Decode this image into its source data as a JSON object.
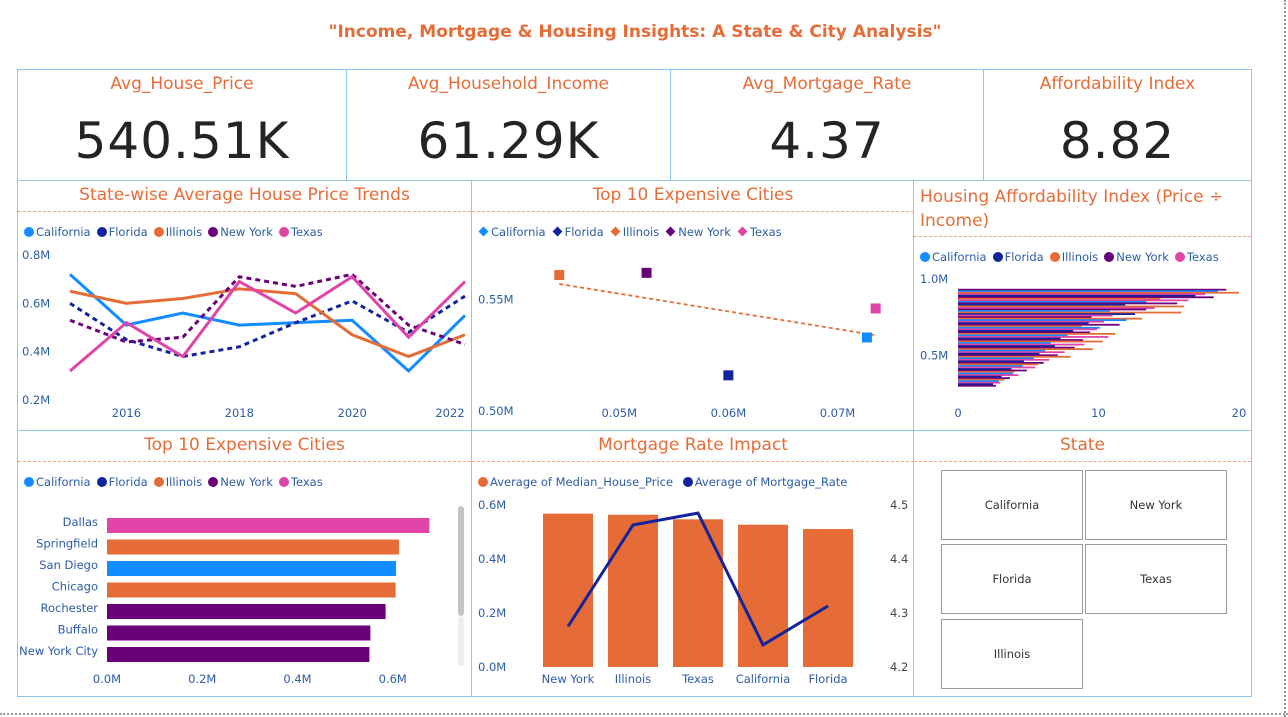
{
  "title": "\"Income, Mortgage & Housing Insights: A State & City Analysis\"",
  "kpis": [
    {
      "label": "Avg_House_Price",
      "value": "540.51K"
    },
    {
      "label": "Avg_Household_Income",
      "value": "61.29K"
    },
    {
      "label": "Avg_Mortgage_Rate",
      "value": "4.37"
    },
    {
      "label": "Affordability Index",
      "value": "8.82"
    }
  ],
  "colors": {
    "California": "#118DFF",
    "Florida": "#12239E",
    "Illinois": "#E66C37",
    "New York": "#6B007B",
    "Texas": "#E044A7",
    "accent": "#E66C37",
    "border": "#8DC7F0"
  },
  "legend_states": [
    "California",
    "Florida",
    "Illinois",
    "New York",
    "Texas"
  ],
  "trend_chart": {
    "title": "State-wise Average House Price Trends",
    "y_ticks": [
      "0.8M",
      "0.6M",
      "0.4M",
      "0.2M"
    ],
    "x_ticks": [
      "2016",
      "2018",
      "2020",
      "2022"
    ]
  },
  "scatter_chart": {
    "title": "Top 10 Expensive Cities",
    "y_ticks": [
      "0.55M",
      "0.50M"
    ],
    "x_ticks": [
      "0.05M",
      "0.06M",
      "0.07M"
    ]
  },
  "afford_chart": {
    "title": "Housing Affordability Index (Price ÷ Income)",
    "y_ticks": [
      "1.0M",
      "0.5M"
    ],
    "x_ticks": [
      "0",
      "10",
      "20"
    ]
  },
  "cities_chart": {
    "title": "Top 10 Expensive Cities",
    "x_ticks": [
      "0.0M",
      "0.2M",
      "0.4M",
      "0.6M"
    ]
  },
  "mortgage_chart": {
    "title": "Mortgage Rate Impact",
    "legend": [
      "Average of Median_House_Price",
      "Average of Mortgage_Rate"
    ],
    "y_ticks_left": [
      "0.6M",
      "0.4M",
      "0.2M",
      "0.0M"
    ],
    "y_ticks_right": [
      "4.5",
      "4.4",
      "4.3",
      "4.2"
    ]
  },
  "state_slicer": {
    "title": "State",
    "items": [
      "California",
      "New York",
      "Florida",
      "Texas",
      "Illinois"
    ]
  },
  "chart_data": [
    {
      "type": "line",
      "title": "State-wise Average House Price Trends",
      "x": [
        2015,
        2016,
        2017,
        2018,
        2019,
        2020,
        2021,
        2022
      ],
      "ylim": [
        0.2,
        0.8
      ],
      "series": [
        {
          "name": "California",
          "values": [
            0.72,
            0.51,
            0.56,
            0.51,
            0.52,
            0.53,
            0.32,
            0.55
          ]
        },
        {
          "name": "Florida",
          "values": [
            0.6,
            0.45,
            0.38,
            0.42,
            0.52,
            0.61,
            0.48,
            0.63
          ]
        },
        {
          "name": "Illinois",
          "values": [
            0.65,
            0.6,
            0.62,
            0.66,
            0.64,
            0.47,
            0.38,
            0.47
          ]
        },
        {
          "name": "New York",
          "values": [
            0.53,
            0.44,
            0.46,
            0.71,
            0.67,
            0.72,
            0.51,
            0.43
          ]
        },
        {
          "name": "Texas",
          "values": [
            0.32,
            0.52,
            0.38,
            0.69,
            0.56,
            0.71,
            0.46,
            0.69
          ]
        }
      ]
    },
    {
      "type": "scatter",
      "title": "Top 10 Expensive Cities",
      "xlim": [
        0.042,
        0.075
      ],
      "ylim": [
        0.5,
        0.57
      ],
      "points": [
        {
          "series": "Illinois",
          "x": 0.0445,
          "y": 0.561
        },
        {
          "series": "New York",
          "x": 0.0525,
          "y": 0.562
        },
        {
          "series": "Florida",
          "x": 0.06,
          "y": 0.516
        },
        {
          "series": "California",
          "x": 0.0727,
          "y": 0.533
        },
        {
          "series": "Texas",
          "x": 0.0735,
          "y": 0.546
        }
      ],
      "trendline": [
        [
          0.0445,
          0.557
        ],
        [
          0.0735,
          0.534
        ]
      ]
    },
    {
      "type": "bar",
      "title": "Housing Affordability Index (Price ÷ Income)",
      "orientation": "horizontal",
      "xlim": [
        0,
        20
      ],
      "ylim": [
        0.2,
        1.0
      ],
      "bars": [
        {
          "series": "New York",
          "y": 0.93,
          "value": 19.1
        },
        {
          "series": "California",
          "y": 0.92,
          "value": 18.5
        },
        {
          "series": "Illinois",
          "y": 0.91,
          "value": 20.0
        },
        {
          "series": "Texas",
          "y": 0.9,
          "value": 17.6
        },
        {
          "series": "Florida",
          "y": 0.89,
          "value": 16.9
        },
        {
          "series": "New York",
          "y": 0.88,
          "value": 18.2
        },
        {
          "series": "Illinois",
          "y": 0.87,
          "value": 14.4
        },
        {
          "series": "Texas",
          "y": 0.86,
          "value": 16.4
        },
        {
          "series": "California",
          "y": 0.85,
          "value": 13.4
        },
        {
          "series": "New York",
          "y": 0.84,
          "value": 15.6
        },
        {
          "series": "Florida",
          "y": 0.83,
          "value": 11.9
        },
        {
          "series": "Illinois",
          "y": 0.82,
          "value": 16.1
        },
        {
          "series": "Texas",
          "y": 0.81,
          "value": 14.0
        },
        {
          "series": "New York",
          "y": 0.8,
          "value": 13.4
        },
        {
          "series": "California",
          "y": 0.79,
          "value": 10.8
        },
        {
          "series": "Illinois",
          "y": 0.78,
          "value": 15.9
        },
        {
          "series": "Florida",
          "y": 0.77,
          "value": 12.6
        },
        {
          "series": "Texas",
          "y": 0.76,
          "value": 11.0
        },
        {
          "series": "New York",
          "y": 0.75,
          "value": 9.5
        },
        {
          "series": "Illinois",
          "y": 0.74,
          "value": 13.1
        },
        {
          "series": "California",
          "y": 0.73,
          "value": 12.0
        },
        {
          "series": "Texas",
          "y": 0.72,
          "value": 10.4
        },
        {
          "series": "Florida",
          "y": 0.71,
          "value": 9.3
        },
        {
          "series": "New York",
          "y": 0.7,
          "value": 11.5
        },
        {
          "series": "Illinois",
          "y": 0.69,
          "value": 8.8
        },
        {
          "series": "California",
          "y": 0.68,
          "value": 10.1
        },
        {
          "series": "Texas",
          "y": 0.67,
          "value": 9.9
        },
        {
          "series": "Florida",
          "y": 0.66,
          "value": 8.2
        },
        {
          "series": "New York",
          "y": 0.65,
          "value": 9.4
        },
        {
          "series": "Illinois",
          "y": 0.64,
          "value": 11.2
        },
        {
          "series": "California",
          "y": 0.63,
          "value": 7.8
        },
        {
          "series": "Texas",
          "y": 0.62,
          "value": 10.7
        },
        {
          "series": "Florida",
          "y": 0.61,
          "value": 7.3
        },
        {
          "series": "New York",
          "y": 0.6,
          "value": 8.9
        },
        {
          "series": "Illinois",
          "y": 0.59,
          "value": 10.3
        },
        {
          "series": "California",
          "y": 0.58,
          "value": 6.6
        },
        {
          "series": "Texas",
          "y": 0.57,
          "value": 9.0
        },
        {
          "series": "Florida",
          "y": 0.56,
          "value": 6.9
        },
        {
          "series": "New York",
          "y": 0.55,
          "value": 8.3
        },
        {
          "series": "Illinois",
          "y": 0.54,
          "value": 9.6
        },
        {
          "series": "California",
          "y": 0.53,
          "value": 6.2
        },
        {
          "series": "Texas",
          "y": 0.52,
          "value": 7.6
        },
        {
          "series": "Florida",
          "y": 0.51,
          "value": 5.8
        },
        {
          "series": "New York",
          "y": 0.5,
          "value": 7.1
        },
        {
          "series": "Illinois",
          "y": 0.49,
          "value": 8.0
        },
        {
          "series": "California",
          "y": 0.48,
          "value": 5.4
        },
        {
          "series": "Texas",
          "y": 0.47,
          "value": 6.5
        },
        {
          "series": "Florida",
          "y": 0.46,
          "value": 4.7
        },
        {
          "series": "New York",
          "y": 0.45,
          "value": 6.1
        },
        {
          "series": "Illinois",
          "y": 0.44,
          "value": 5.7
        },
        {
          "series": "California",
          "y": 0.43,
          "value": 4.6
        },
        {
          "series": "Texas",
          "y": 0.42,
          "value": 5.5
        },
        {
          "series": "Florida",
          "y": 0.41,
          "value": 3.8
        },
        {
          "series": "New York",
          "y": 0.4,
          "value": 4.9
        },
        {
          "series": "Illinois",
          "y": 0.39,
          "value": 4.0
        },
        {
          "series": "California",
          "y": 0.38,
          "value": 3.9
        },
        {
          "series": "Texas",
          "y": 0.37,
          "value": 4.3
        },
        {
          "series": "Florida",
          "y": 0.36,
          "value": 3.1
        },
        {
          "series": "New York",
          "y": 0.35,
          "value": 3.7
        },
        {
          "series": "Illinois",
          "y": 0.34,
          "value": 3.3
        },
        {
          "series": "California",
          "y": 0.33,
          "value": 2.9
        },
        {
          "series": "Texas",
          "y": 0.32,
          "value": 3.0
        },
        {
          "series": "Florida",
          "y": 0.31,
          "value": 2.5
        },
        {
          "series": "New York",
          "y": 0.3,
          "value": 2.7
        }
      ]
    },
    {
      "type": "bar",
      "title": "Top 10 Expensive Cities",
      "orientation": "horizontal",
      "xlim": [
        0,
        0.7
      ],
      "categories": [
        "Dallas",
        "Springfield",
        "San Diego",
        "Chicago",
        "Rochester",
        "Buffalo",
        "New York City"
      ],
      "values": [
        0.677,
        0.613,
        0.607,
        0.606,
        0.585,
        0.553,
        0.551
      ],
      "series_of_category": [
        "Texas",
        "Illinois",
        "California",
        "Illinois",
        "New York",
        "New York",
        "New York"
      ]
    },
    {
      "type": "bar",
      "title": "Mortgage Rate Impact",
      "categories": [
        "New York",
        "Illinois",
        "Texas",
        "California",
        "Florida"
      ],
      "series": [
        {
          "name": "Average of Median_House_Price",
          "values": [
            0.568,
            0.564,
            0.547,
            0.527,
            0.511
          ]
        },
        {
          "name": "Average of Mortgage_Rate",
          "values": [
            4.275,
            4.463,
            4.485,
            4.241,
            4.313
          ]
        }
      ],
      "ylim": [
        0,
        0.6
      ],
      "y2lim": [
        4.2,
        4.5
      ]
    }
  ]
}
